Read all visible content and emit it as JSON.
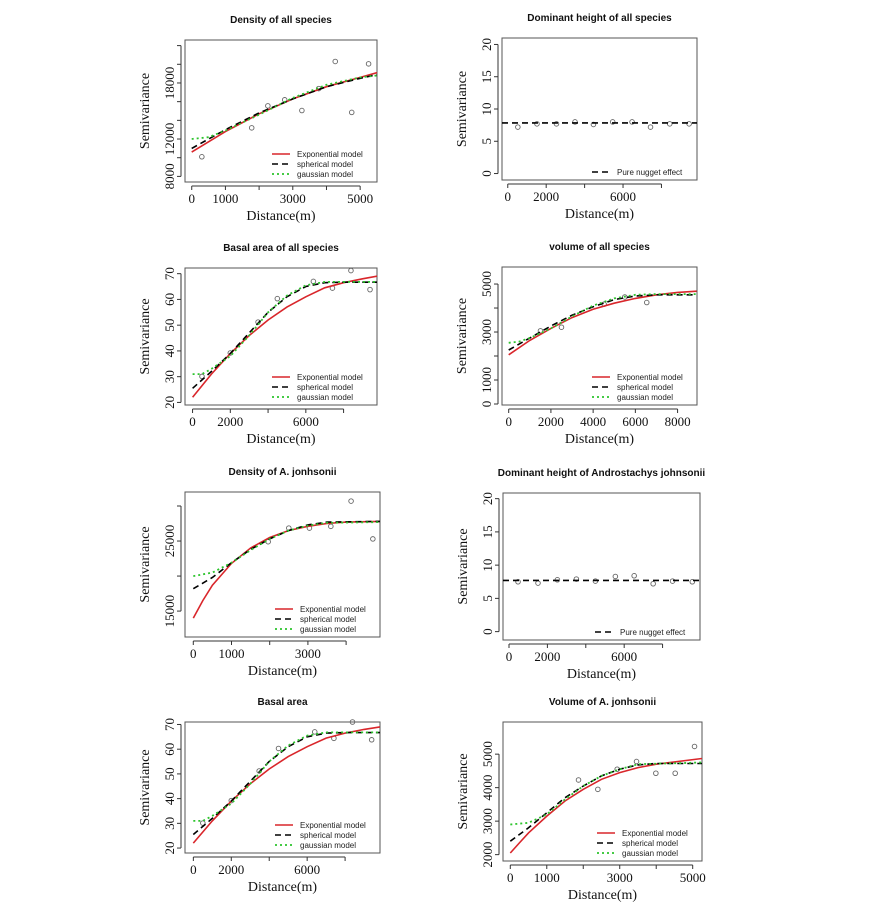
{
  "colors": {
    "exponential": "#d9262b",
    "spherical": "#000000",
    "gaussian": "#2dc42d",
    "points": "#666666"
  },
  "chart_data": [
    {
      "type": "scatter+line",
      "title": "Density of all species",
      "xlabel": "Distance(m)",
      "ylabel": "Semivariance",
      "xlim": [
        -200,
        5500
      ],
      "ylim": [
        7400,
        22600
      ],
      "xticks": [
        0,
        1000,
        2000,
        3000,
        4000,
        5000
      ],
      "xticklabels": [
        "0",
        "1000",
        "",
        "3000",
        "",
        "5000"
      ],
      "yticks": [
        8000,
        10000,
        12000,
        14000,
        16000,
        18000,
        20000,
        22000
      ],
      "yticklabels": [
        "8000",
        "",
        "12000",
        "",
        "",
        "18000",
        "",
        ""
      ],
      "legend_position": "bottom-right",
      "points": {
        "x": [
          300,
          1780,
          2260,
          2760,
          3270,
          3770,
          4260,
          4750,
          5250
        ],
        "y": [
          10100,
          13200,
          15550,
          16200,
          15050,
          17400,
          20300,
          14850,
          20050
        ]
      },
      "series": [
        {
          "name": "Exponential model",
          "style": "solid",
          "x": [
            0,
            1000,
            2000,
            3000,
            4000,
            5000,
            5500
          ],
          "y": [
            10600,
            12800,
            14700,
            16300,
            17600,
            18600,
            19100
          ]
        },
        {
          "name": "spherical model",
          "style": "dashed",
          "x": [
            0,
            1000,
            2000,
            3000,
            4000,
            5000,
            5500
          ],
          "y": [
            11000,
            13000,
            14800,
            16300,
            17600,
            18500,
            18900
          ]
        },
        {
          "name": "gaussian model",
          "style": "dotted",
          "x": [
            0,
            500,
            1000,
            2000,
            3000,
            4000,
            5000,
            5500
          ],
          "y": [
            12000,
            12200,
            12900,
            14600,
            16400,
            17800,
            18600,
            18800
          ]
        }
      ]
    },
    {
      "type": "scatter+line",
      "title": "Dominant height of all species",
      "xlabel": "Distance(m)",
      "ylabel": "Semivariance",
      "xlim": [
        -300,
        9850
      ],
      "ylim": [
        -1,
        21
      ],
      "xticks": [
        0,
        2000,
        4000,
        6000,
        8000
      ],
      "xticklabels": [
        "0",
        "2000",
        "",
        "6000",
        ""
      ],
      "yticks": [
        0,
        5,
        10,
        15,
        20
      ],
      "yticklabels": [
        "0",
        "5",
        "10",
        "15",
        "20"
      ],
      "legend_position": "bottom-right",
      "points": {
        "x": [
          525,
          1520,
          2535,
          3500,
          4460,
          5460,
          6470,
          7430,
          8430,
          9440
        ],
        "y": [
          7.2,
          7.7,
          7.7,
          8.0,
          7.6,
          8.0,
          8.0,
          7.2,
          7.7,
          7.7
        ]
      },
      "series": [
        {
          "name": "Pure nugget effect",
          "style": "dashed",
          "x": [
            -300,
            9850
          ],
          "y": [
            7.85,
            7.85
          ]
        }
      ]
    },
    {
      "type": "scatter+line",
      "title": "Basal area of all species",
      "xlabel": "Distance(m)",
      "ylabel": "Semivariance",
      "xlim": [
        -400,
        9770
      ],
      "ylim": [
        19,
        72.2
      ],
      "xticks": [
        0,
        2000,
        4000,
        6000,
        8000
      ],
      "xticklabels": [
        "0",
        "2000",
        "",
        "6000",
        ""
      ],
      "yticks": [
        20,
        30,
        40,
        50,
        60,
        70
      ],
      "yticklabels": [
        "20",
        "30",
        "40",
        "50",
        "60",
        "70"
      ],
      "legend_position": "bottom-right",
      "points": {
        "x": [
          500,
          2000,
          3470,
          4490,
          6400,
          7410,
          8390,
          9400
        ],
        "y": [
          30.1,
          39.2,
          51.2,
          60.3,
          67,
          64.4,
          71.2,
          63.8
        ]
      },
      "series": [
        {
          "name": "Exponential model",
          "style": "solid",
          "x": [
            0,
            1000,
            2000,
            3000,
            4000,
            5000,
            6000,
            7000,
            8000,
            9000,
            9770
          ],
          "y": [
            22,
            31,
            39,
            46,
            52,
            57,
            61,
            64.5,
            66.5,
            68,
            69
          ]
        },
        {
          "name": "spherical model",
          "style": "dashed",
          "x": [
            0,
            1000,
            2000,
            3000,
            4000,
            5000,
            6000,
            7000,
            8000,
            9770
          ],
          "y": [
            25.5,
            32,
            39,
            47,
            55,
            61,
            65,
            66.5,
            66.7,
            66.7
          ]
        },
        {
          "name": "gaussian model",
          "style": "dotted",
          "x": [
            0,
            500,
            1000,
            2000,
            3000,
            4000,
            5000,
            6000,
            7000,
            9770
          ],
          "y": [
            31,
            31,
            33,
            38,
            46,
            55,
            61.5,
            65.5,
            66.8,
            66.8
          ]
        }
      ]
    },
    {
      "type": "scatter+line",
      "title": "volume of all species",
      "xlabel": "Distance(m)",
      "ylabel": "Semivariance",
      "xlim": [
        -317,
        8920
      ],
      "ylim": [
        -42,
        5710
      ],
      "xticks": [
        0,
        2000,
        4000,
        6000,
        8000
      ],
      "xticklabels": [
        "0",
        "2000",
        "4000",
        "6000",
        "8000"
      ],
      "yticks": [
        0,
        1000,
        2000,
        3000,
        4000,
        5000
      ],
      "yticklabels": [
        "0",
        "1000",
        "",
        "3000",
        "",
        "5000"
      ],
      "legend_position": "bottom-right",
      "points": {
        "x": [
          1505,
          2500,
          4520,
          5500,
          6540
        ],
        "y": [
          3050,
          3200,
          4160,
          4460,
          4230
        ]
      },
      "series": [
        {
          "name": "Exponential model",
          "style": "solid",
          "x": [
            0,
            1000,
            2000,
            3000,
            4000,
            5000,
            6000,
            7000,
            8000,
            8900
          ],
          "y": [
            2050,
            2650,
            3150,
            3600,
            3950,
            4200,
            4400,
            4550,
            4650,
            4700
          ]
        },
        {
          "name": "spherical model",
          "style": "dashed",
          "x": [
            0,
            1000,
            2000,
            3000,
            4000,
            5000,
            6000,
            7000,
            8900
          ],
          "y": [
            2250,
            2750,
            3250,
            3700,
            4050,
            4350,
            4500,
            4550,
            4550
          ]
        },
        {
          "name": "gaussian model",
          "style": "dotted",
          "x": [
            0,
            500,
            1000,
            2000,
            3000,
            4000,
            5000,
            6000,
            7000,
            8900
          ],
          "y": [
            2550,
            2600,
            2750,
            3150,
            3650,
            4100,
            4400,
            4550,
            4580,
            4580
          ]
        }
      ]
    },
    {
      "type": "scatter+line",
      "title": "Density of A. jonhsonii",
      "xlabel": "Distance(m)",
      "ylabel": "Semivariance",
      "xlim": [
        -217,
        4887
      ],
      "ylim": [
        11300,
        32000
      ],
      "xticks": [
        0,
        1000,
        2000,
        3000,
        4000
      ],
      "xticklabels": [
        "0",
        "1000",
        "",
        "3000",
        ""
      ],
      "yticks": [
        15000,
        20000,
        25000,
        30000
      ],
      "yticklabels": [
        "15000",
        "",
        "25000",
        ""
      ],
      "legend_position": "bottom-right",
      "points": {
        "x": [
          1960,
          2500,
          3040,
          3600,
          4130,
          4700
        ],
        "y": [
          24900,
          26850,
          26850,
          27100,
          30700,
          25300
        ]
      },
      "series": [
        {
          "name": "Exponential model",
          "style": "solid",
          "x": [
            0,
            250,
            500,
            1000,
            1500,
            2000,
            2500,
            3000,
            3500,
            4000,
            4887
          ],
          "y": [
            14000,
            16500,
            18700,
            21800,
            24000,
            25500,
            26500,
            27100,
            27500,
            27700,
            27800
          ]
        },
        {
          "name": "spherical model",
          "style": "dashed",
          "x": [
            0,
            500,
            1000,
            1500,
            2000,
            2500,
            3000,
            3500,
            4887
          ],
          "y": [
            18200,
            19800,
            21900,
            23800,
            25300,
            26500,
            27300,
            27700,
            27800
          ]
        },
        {
          "name": "gaussian model",
          "style": "dotted",
          "x": [
            0,
            500,
            1000,
            1500,
            2000,
            2500,
            3000,
            3500,
            4887
          ],
          "y": [
            20000,
            20500,
            21900,
            23700,
            25300,
            26500,
            27200,
            27600,
            27700
          ]
        }
      ]
    },
    {
      "type": "scatter+line",
      "title": "Dominant height of Androstachys johnsonii",
      "xlabel": "Distance(m)",
      "ylabel": "Semivariance",
      "xlim": [
        -313,
        9950
      ],
      "ylim": [
        -1.26,
        20.85
      ],
      "xticks": [
        0,
        2000,
        4000,
        6000,
        8000
      ],
      "xticklabels": [
        "0",
        "2000",
        "",
        "6000",
        ""
      ],
      "yticks": [
        0,
        5,
        10,
        15,
        20
      ],
      "yticklabels": [
        "0",
        "5",
        "10",
        "15",
        "20"
      ],
      "legend_position": "bottom-right",
      "points": {
        "x": [
          470,
          1510,
          2520,
          3510,
          4500,
          5540,
          6520,
          7510,
          8520,
          9550
        ],
        "y": [
          7.5,
          7.3,
          7.8,
          7.9,
          7.6,
          8.3,
          8.4,
          7.2,
          7.6,
          7.5
        ]
      },
      "series": [
        {
          "name": "Pure nugget effect",
          "style": "dashed",
          "x": [
            -313,
            9950
          ],
          "y": [
            7.7,
            7.7
          ]
        }
      ]
    },
    {
      "type": "scatter+line",
      "title": "Basal area",
      "xlabel": "Distance(m)",
      "ylabel": "Semivariance",
      "xlim": [
        -440,
        9840
      ],
      "ylim": [
        18,
        71
      ],
      "xticks": [
        0,
        2000,
        4000,
        6000,
        8000
      ],
      "xticklabels": [
        "0",
        "2000",
        "",
        "6000",
        ""
      ],
      "yticks": [
        20,
        30,
        40,
        50,
        60,
        70
      ],
      "yticklabels": [
        "20",
        "30",
        "40",
        "50",
        "60",
        "70"
      ],
      "legend_position": "bottom-right",
      "points": {
        "x": [
          500,
          2000,
          3470,
          4490,
          6400,
          7410,
          8390,
          9400
        ],
        "y": [
          30.1,
          39.2,
          51.2,
          60.3,
          67,
          64.4,
          71,
          63.8
        ]
      },
      "series": [
        {
          "name": "Exponential model",
          "style": "solid",
          "x": [
            0,
            1000,
            2000,
            3000,
            4000,
            5000,
            6000,
            7000,
            8000,
            9000,
            9840
          ],
          "y": [
            22,
            31,
            39,
            46,
            52,
            57,
            61,
            64.5,
            66.5,
            68,
            69
          ]
        },
        {
          "name": "spherical model",
          "style": "dashed",
          "x": [
            0,
            1000,
            2000,
            3000,
            4000,
            5000,
            6000,
            7000,
            8000,
            9840
          ],
          "y": [
            25.5,
            32,
            39,
            47,
            55,
            61,
            65,
            66.5,
            66.7,
            66.7
          ]
        },
        {
          "name": "gaussian model",
          "style": "dotted",
          "x": [
            0,
            500,
            1000,
            2000,
            3000,
            4000,
            5000,
            6000,
            7000,
            9840
          ],
          "y": [
            31,
            31,
            33,
            38,
            46,
            55,
            61.5,
            65.5,
            66.8,
            66.8
          ]
        }
      ]
    },
    {
      "type": "scatter+line",
      "title": "Volume of A. jonhsonii",
      "xlabel": "Distance(m)",
      "ylabel": "Semivariance",
      "xlim": [
        -200,
        5255
      ],
      "ylim": [
        1810,
        5960
      ],
      "xticks": [
        0,
        1000,
        2000,
        3000,
        4000,
        5000
      ],
      "xticklabels": [
        "0",
        "1000",
        "",
        "3000",
        "",
        "5000"
      ],
      "yticks": [
        2000,
        3000,
        4000,
        5000
      ],
      "yticklabels": [
        "2000",
        "3000",
        "4000",
        "5000"
      ],
      "legend_position": "bottom-right",
      "points": {
        "x": [
          1870,
          2400,
          2930,
          3460,
          3990,
          4520,
          5050
        ],
        "y": [
          4230,
          3950,
          4550,
          4780,
          4430,
          4430,
          5230
        ]
      },
      "series": [
        {
          "name": "Exponential model",
          "style": "solid",
          "x": [
            0,
            250,
            500,
            1000,
            1500,
            2000,
            2500,
            3000,
            3500,
            4000,
            5255
          ],
          "y": [
            2050,
            2350,
            2650,
            3150,
            3600,
            3950,
            4250,
            4450,
            4600,
            4700,
            4870
          ]
        },
        {
          "name": "spherical model",
          "style": "dashed",
          "x": [
            0,
            500,
            1000,
            1500,
            2000,
            2500,
            3000,
            3500,
            4000,
            5255
          ],
          "y": [
            2400,
            2800,
            3250,
            3700,
            4050,
            4350,
            4550,
            4680,
            4720,
            4720
          ]
        },
        {
          "name": "gaussian model",
          "style": "dotted",
          "x": [
            0,
            500,
            1000,
            1500,
            2000,
            2500,
            3000,
            3500,
            5255
          ],
          "y": [
            2900,
            2950,
            3200,
            3650,
            4050,
            4350,
            4550,
            4700,
            4750
          ]
        }
      ]
    }
  ]
}
